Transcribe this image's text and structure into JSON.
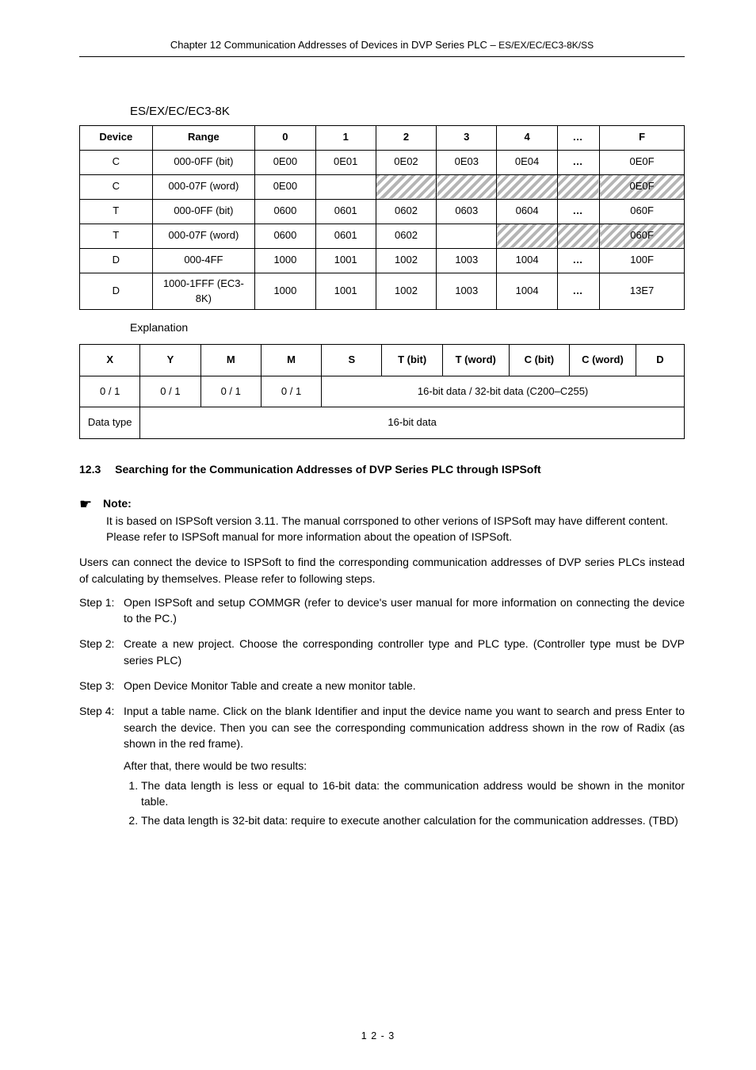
{
  "header": {
    "title_left": "Chapter 12 Communication Addresses of Devices in DVP Series PLC ",
    "title_dash": "–",
    "title_right": " ES/EX/EC/EC3-8K/SS"
  },
  "section": {
    "title": "ES/EX/EC/EC3-8K"
  },
  "table1": {
    "columns": [
      "Device",
      "Range",
      "0",
      "1",
      "2",
      "3",
      "4",
      "…",
      "F"
    ],
    "rows": [
      {
        "device": "C",
        "range": "000-0FF (bit)",
        "cells": [
          "0E00",
          "0E01",
          "0E02",
          "0E03",
          "0E04",
          "…",
          "0E0F"
        ],
        "hatch": []
      },
      {
        "device": "C",
        "range": "000-07F (word)",
        "cells": [
          "0E00",
          "",
          "",
          "",
          "",
          "",
          "0E0F"
        ],
        "hatch": [
          2,
          3,
          4,
          5,
          6
        ]
      },
      {
        "device": "T",
        "range": "000-0FF (bit)",
        "cells": [
          "0600",
          "0601",
          "0602",
          "0603",
          "0604",
          "…",
          "060F"
        ],
        "hatch": []
      },
      {
        "device": "T",
        "range": "000-07F (word)",
        "cells": [
          "0600",
          "0601",
          "0602",
          "",
          "",
          "",
          "060F"
        ],
        "hatch": [
          4,
          5,
          6
        ]
      },
      {
        "device": "D",
        "range": "000-4FF",
        "cells": [
          "1000",
          "1001",
          "1002",
          "1003",
          "1004",
          "…",
          "100F"
        ],
        "hatch": []
      },
      {
        "device": "D",
        "range": "1000-1FFF (EC3-8K)",
        "cells": [
          "1000",
          "1001",
          "1002",
          "1003",
          "1004",
          "…",
          "13E7"
        ],
        "hatch": []
      }
    ]
  },
  "expl_intro": "Explanation",
  "table2": {
    "header": [
      "X",
      "Y",
      "M",
      "M",
      "S",
      "T (bit)",
      "T (word)",
      "C (bit)",
      "C (word)",
      "D"
    ],
    "row1": [
      "0 / 1",
      "0 / 1",
      "0 / 1",
      "0 / 1",
      "16-bit data / 32-bit data (C200–C255)"
    ],
    "row2_label": "Data type",
    "row2_value": "16-bit data"
  },
  "sec123": {
    "number": "12.3",
    "title": "Searching for the Communication Addresses of DVP Series PLC through ISPSoft"
  },
  "note": {
    "label": "Note:",
    "body": "It is based on ISPSoft version 3.11. The manual corrsponed to other verions of ISPSoft may have different content. Please refer to ISPSoft manual for more information about the opeation of ISPSoft."
  },
  "para1": "Users can connect the device to ISPSoft to find the corresponding communication addresses of DVP series PLCs instead of calculating by themselves. Please refer to following steps.",
  "steps": [
    "Open ISPSoft and setup COMMGR (refer to device's user manual for more information on connecting the device to the PC.)",
    "Create a new project. Choose the corresponding controller type and PLC type. (Controller type must be DVP series PLC)",
    "Open Device Monitor Table and create a new monitor table.",
    "Input a table name. Click on the blank Identifier and input the device name you want to search and press Enter to search the device. Then you can see the corresponding communication address shown in the row of Radix (as shown in the red frame)."
  ],
  "substeps_intro": "After that, there would be two results:",
  "substeps": [
    "The data length is less or equal to 16-bit data: the communication address would be shown in the monitor table.",
    "The data length is 32-bit data: require to execute another calculation for the communication addresses. (TBD)"
  ],
  "footer": "1 2 - 3"
}
